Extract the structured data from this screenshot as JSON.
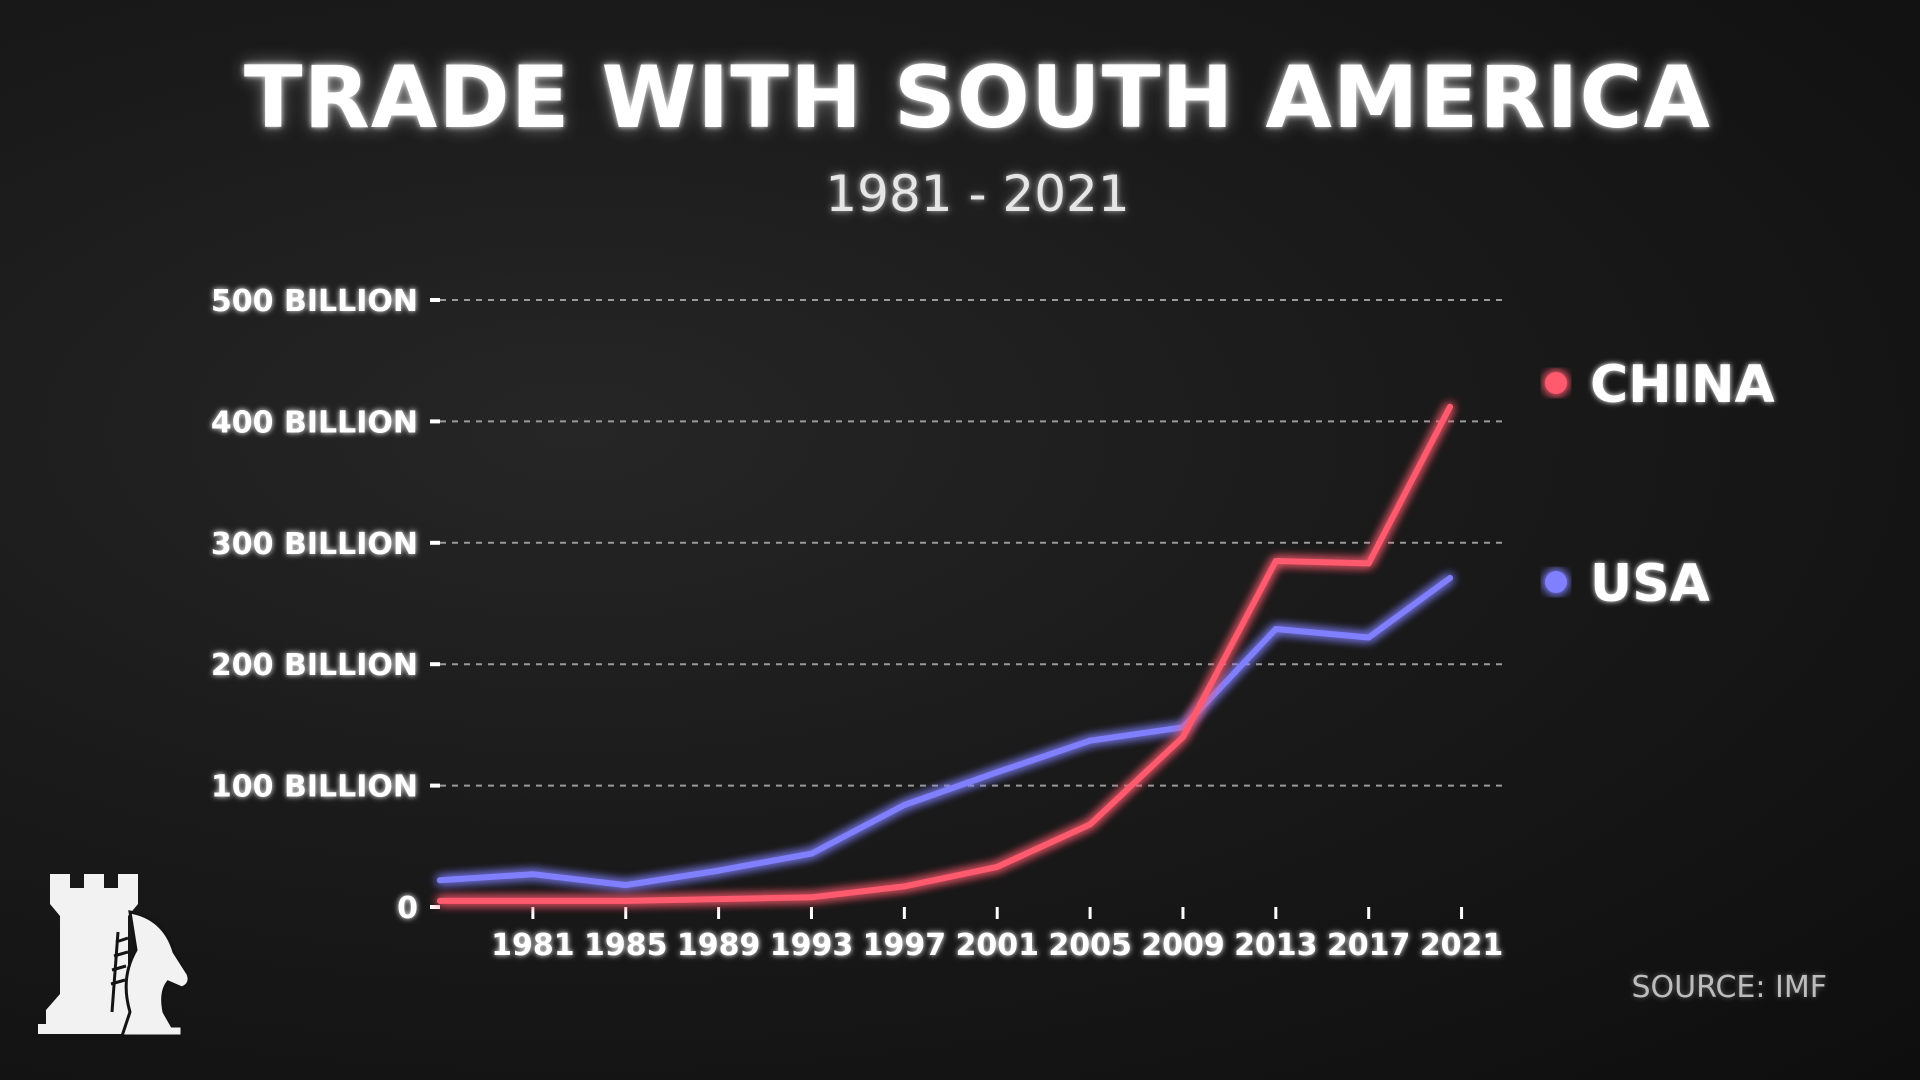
{
  "title": "TRADE WITH SOUTH AMERICA",
  "subtitle": "1981 - 2021",
  "source": "SOURCE: IMF",
  "logo_icon": "rook-knight-logo-icon",
  "chart_data": {
    "type": "line",
    "title": "TRADE WITH SOUTH AMERICA",
    "subtitle": "1981 - 2021",
    "x_ticks": [
      "1981",
      "1985",
      "1989",
      "1993",
      "1997",
      "2001",
      "2005",
      "2009",
      "2013",
      "2017",
      "2021"
    ],
    "y_ticks": [
      "0",
      "100 BILLION",
      "200 BILLION",
      "300 BILLION",
      "400 BILLION",
      "500 BILLION"
    ],
    "xlim": [
      1977,
      2023
    ],
    "ylim": [
      0,
      500
    ],
    "grid": true,
    "legend": "right",
    "series": [
      {
        "name": "CHINA",
        "color": "#ff5a6e",
        "points": [
          [
            1977,
            5
          ],
          [
            1985,
            5
          ],
          [
            1993,
            8
          ],
          [
            1997,
            17
          ],
          [
            2001,
            33
          ],
          [
            2005,
            68
          ],
          [
            2009,
            140
          ],
          [
            2013,
            285
          ],
          [
            2017,
            283
          ],
          [
            2020.5,
            412
          ]
        ]
      },
      {
        "name": "USA",
        "color": "#8080ff",
        "points": [
          [
            1977,
            22
          ],
          [
            1981,
            27
          ],
          [
            1985,
            18
          ],
          [
            1989,
            30
          ],
          [
            1993,
            44
          ],
          [
            1997,
            84
          ],
          [
            2001,
            111
          ],
          [
            2005,
            137
          ],
          [
            2009,
            148
          ],
          [
            2013,
            229
          ],
          [
            2017,
            222
          ],
          [
            2020.5,
            271
          ]
        ]
      }
    ]
  }
}
